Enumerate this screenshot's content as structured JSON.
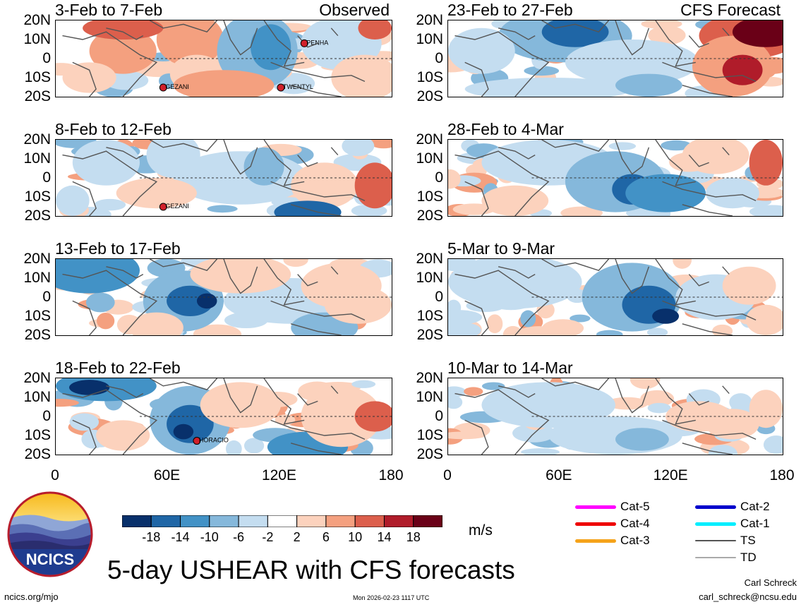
{
  "chart_data": {
    "type": "heatmap",
    "title": "5-day USHEAR with CFS forecasts",
    "units": "m/s",
    "y_ticks": [
      "20N",
      "10N",
      "0",
      "10S",
      "20S"
    ],
    "x_ticks": [
      "0",
      "60E",
      "120E",
      "180"
    ],
    "colorbar_ticks": [
      -18,
      -14,
      -10,
      -6,
      -2,
      2,
      6,
      10,
      14,
      18
    ],
    "colorbar_colors": [
      "#08306b",
      "#1f66a6",
      "#4292c6",
      "#85b8db",
      "#c4ddf0",
      "#ffffff",
      "#fcd2bd",
      "#f4a07f",
      "#dc5f4c",
      "#b01c2a",
      "#6a0017"
    ],
    "observed_label": "Observed",
    "forecast_label": "CFS Forecast",
    "observed_panels": [
      {
        "period": "3-Feb to 7-Feb",
        "storms": [
          "PENHA",
          "GEZANI",
          "TWENTYL"
        ]
      },
      {
        "period": "8-Feb to 12-Feb",
        "storms": [
          "GEZANI"
        ]
      },
      {
        "period": "13-Feb to 17-Feb",
        "storms": []
      },
      {
        "period": "18-Feb to 22-Feb",
        "storms": [
          "HORACIO"
        ]
      }
    ],
    "forecast_panels": [
      {
        "period": "23-Feb to 27-Feb"
      },
      {
        "period": "28-Feb to 4-Mar"
      },
      {
        "period": "5-Mar to 9-Mar"
      },
      {
        "period": "10-Mar to 14-Mar"
      }
    ]
  },
  "legend": {
    "items": [
      {
        "label": "Cat-5",
        "color": "#ff00ff"
      },
      {
        "label": "Cat-4",
        "color": "#ee0000"
      },
      {
        "label": "Cat-3",
        "color": "#f5a31a"
      },
      {
        "label": "Cat-2",
        "color": "#0000cc"
      },
      {
        "label": "Cat-1",
        "color": "#00eeff"
      },
      {
        "label": "TS",
        "color": "#555555"
      },
      {
        "label": "TD",
        "color": "#aaaaaa"
      }
    ]
  },
  "logo": {
    "text": "NCICS"
  },
  "footer": {
    "site": "ncics.org/mjo",
    "timestamp": "Mon 2026-02-23 1117 UTC",
    "author": "Carl Schreck",
    "email": "carl_schreck@ncsu.edu"
  }
}
